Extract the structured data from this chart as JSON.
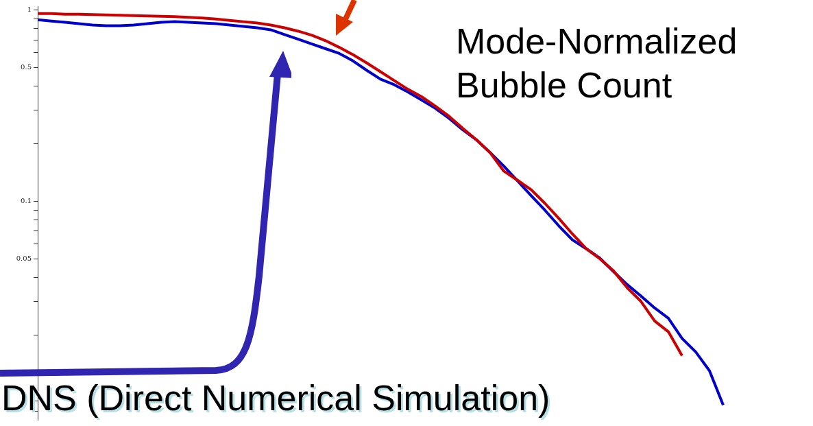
{
  "chart_data": {
    "type": "line",
    "log": "y",
    "grid": false,
    "tick_labels": "y",
    "categories": [
      null,
      null,
      null,
      null,
      null,
      null,
      null,
      null,
      null,
      null,
      null,
      null,
      null,
      null,
      null,
      null,
      null,
      null,
      null,
      null,
      null,
      null,
      null,
      null,
      null,
      null,
      null,
      null,
      null,
      null,
      null,
      null,
      null,
      null,
      null,
      null,
      null,
      null,
      null,
      null,
      null,
      null,
      null,
      null,
      null,
      null,
      null,
      null,
      null,
      null,
      null
    ],
    "ylim": [
      0.0072,
      1.05
    ],
    "yticks": [
      1,
      {
        "value": 0.9,
        "label": null
      },
      {
        "value": 0.8,
        "label": null
      },
      {
        "value": 0.7,
        "label": null
      },
      {
        "value": 0.6,
        "label": null
      },
      0.5,
      {
        "value": 0.4,
        "label": null
      },
      {
        "value": 0.3,
        "label": null
      },
      {
        "value": 0.2,
        "label": null
      },
      0.1,
      {
        "value": 0.09,
        "label": null
      },
      {
        "value": 0.08,
        "label": null
      },
      {
        "value": 0.07,
        "label": null
      },
      {
        "value": 0.06,
        "label": null
      },
      0.05,
      {
        "value": 0.04,
        "label": null
      },
      {
        "value": 0.03,
        "label": null
      },
      {
        "value": 0.02,
        "label": null
      },
      {
        "value": 0.01,
        "label": null
      },
      {
        "value": 0.009,
        "label": null
      },
      {
        "value": 0.008,
        "label": null
      }
    ],
    "series": [
      {
        "name": "Mode-Normalized Bubble Count",
        "color": "#cc0000",
        "values": [
          0.96,
          0.96,
          0.952,
          0.952,
          0.948,
          0.945,
          0.941,
          0.937,
          0.933,
          0.93,
          0.926,
          0.918,
          0.911,
          0.9,
          0.885,
          0.871,
          0.857,
          0.836,
          0.809,
          0.777,
          0.74,
          0.693,
          0.639,
          0.585,
          0.53,
          0.477,
          0.429,
          0.386,
          0.353,
          0.315,
          0.279,
          0.241,
          0.21,
          0.18,
          0.144,
          0.129,
          0.115,
          0.0976,
          0.0816,
          0.0676,
          0.0566,
          0.0501,
          0.0433,
          0.0353,
          0.03,
          0.0237,
          0.0208,
          0.0156,
          null,
          null,
          null
        ]
      },
      {
        "name": "DNS (Direct Numerical Simulation)",
        "color": "#0000cc",
        "values": [
          0.892,
          0.878,
          0.864,
          0.85,
          0.836,
          0.829,
          0.829,
          0.836,
          0.85,
          0.864,
          0.871,
          0.864,
          0.857,
          0.85,
          0.836,
          0.823,
          0.809,
          0.79,
          0.746,
          0.705,
          0.666,
          0.629,
          0.594,
          0.543,
          0.485,
          0.436,
          0.408,
          0.374,
          0.339,
          0.307,
          0.272,
          0.237,
          0.21,
          0.18,
          0.153,
          0.128,
          0.107,
          0.0899,
          0.0746,
          0.0629,
          0.0566,
          0.0505,
          0.0429,
          0.0367,
          0.032,
          0.0277,
          0.0245,
          0.0192,
          0.0163,
          0.013,
          0.0086
        ]
      }
    ]
  }
}
